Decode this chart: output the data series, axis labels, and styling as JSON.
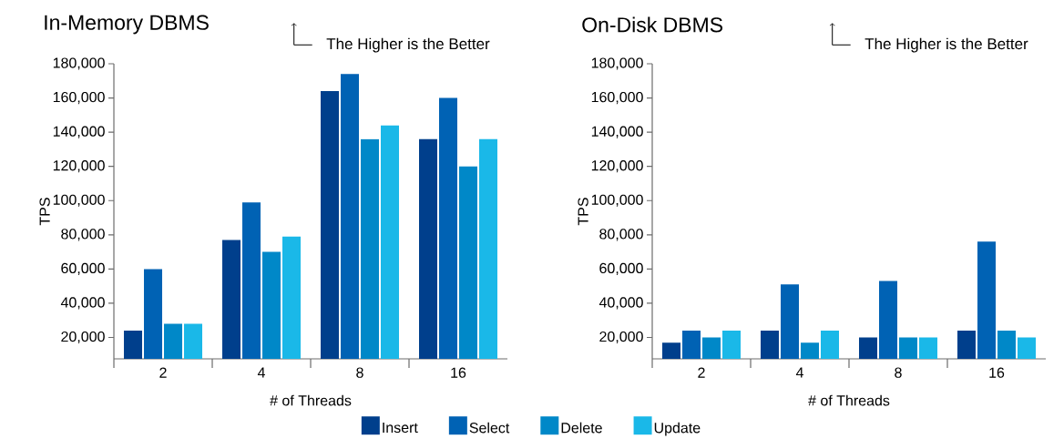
{
  "chart_data": [
    {
      "type": "bar",
      "title": "In-Memory DBMS",
      "annotations": [
        "The Higher is the Better"
      ],
      "xlabel": "# of Threads",
      "ylabel": "TPS",
      "categories": [
        "2",
        "4",
        "8",
        "16"
      ],
      "legend": "bottom",
      "series": [
        {
          "name": "Insert",
          "color": "#003f8c",
          "values": [
            24000,
            77000,
            164000,
            136000
          ]
        },
        {
          "name": "Select",
          "color": "#0062b4",
          "values": [
            60000,
            99000,
            174000,
            160000
          ]
        },
        {
          "name": "Delete",
          "color": "#0088c8",
          "values": [
            28000,
            70000,
            136000,
            120000
          ]
        },
        {
          "name": "Update",
          "color": "#1ab8e8",
          "values": [
            28000,
            79000,
            144000,
            136000
          ]
        }
      ],
      "ylim": [
        7500,
        180000
      ],
      "yticks": [
        {
          "value": 20000,
          "label": "20,000"
        },
        {
          "value": 40000,
          "label": "40,000"
        },
        {
          "value": 60000,
          "label": "60,000"
        },
        {
          "value": 80000,
          "label": "80,000"
        },
        {
          "value": 100000,
          "label": "100,000"
        },
        {
          "value": 120000,
          "label": "120,000"
        },
        {
          "value": 140000,
          "label": "140,000"
        },
        {
          "value": 160000,
          "label": "160,000"
        },
        {
          "value": 180000,
          "label": "180,000"
        }
      ]
    },
    {
      "type": "bar",
      "title": "On-Disk DBMS",
      "annotations": [
        "The Higher is the Better"
      ],
      "xlabel": "# of Threads",
      "ylabel": "TPS",
      "categories": [
        "2",
        "4",
        "8",
        "16"
      ],
      "series": [
        {
          "color": "#003f8c",
          "values": [
            17000,
            24000,
            20000,
            24000
          ]
        },
        {
          "color": "#0062b4",
          "values": [
            24000,
            51000,
            53000,
            76000
          ]
        },
        {
          "color": "#0088c8",
          "values": [
            20000,
            17000,
            20000,
            24000
          ]
        },
        {
          "color": "#1ab8e8",
          "values": [
            24000,
            24000,
            20000,
            20000
          ]
        }
      ],
      "ylim": [
        7500,
        180000
      ],
      "yticks": [
        {
          "value": 20000,
          "label": "20,000"
        },
        {
          "value": 40000,
          "label": "40,000"
        },
        {
          "value": 60000,
          "label": "60,000"
        },
        {
          "value": 80000,
          "label": "80,000"
        },
        {
          "value": 100000,
          "label": "100,000"
        },
        {
          "value": 120000,
          "label": "120,000"
        },
        {
          "value": 140000,
          "label": "140,000"
        },
        {
          "value": 160000,
          "label": "160,000"
        },
        {
          "value": 180000,
          "label": "180,000"
        }
      ]
    }
  ]
}
